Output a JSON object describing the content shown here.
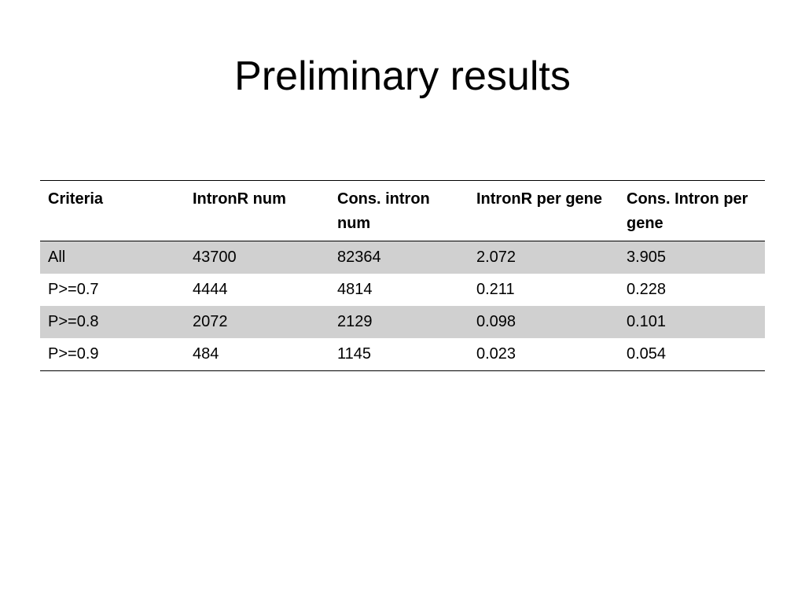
{
  "slide": {
    "title": "Preliminary results"
  },
  "table": {
    "headers": [
      "Criteria",
      "IntronR num",
      "Cons. intron num",
      "IntronR per gene",
      "Cons. Intron per gene"
    ],
    "rows": [
      [
        "All",
        "43700",
        "82364",
        "2.072",
        "3.905"
      ],
      [
        "P>=0.7",
        "4444",
        "4814",
        "0.211",
        "0.228"
      ],
      [
        "P>=0.8",
        "2072",
        "2129",
        "0.098",
        "0.101"
      ],
      [
        "P>=0.9",
        "484",
        "1145",
        "0.023",
        "0.054"
      ]
    ],
    "shaded_row_color": "#d0d0d0"
  }
}
